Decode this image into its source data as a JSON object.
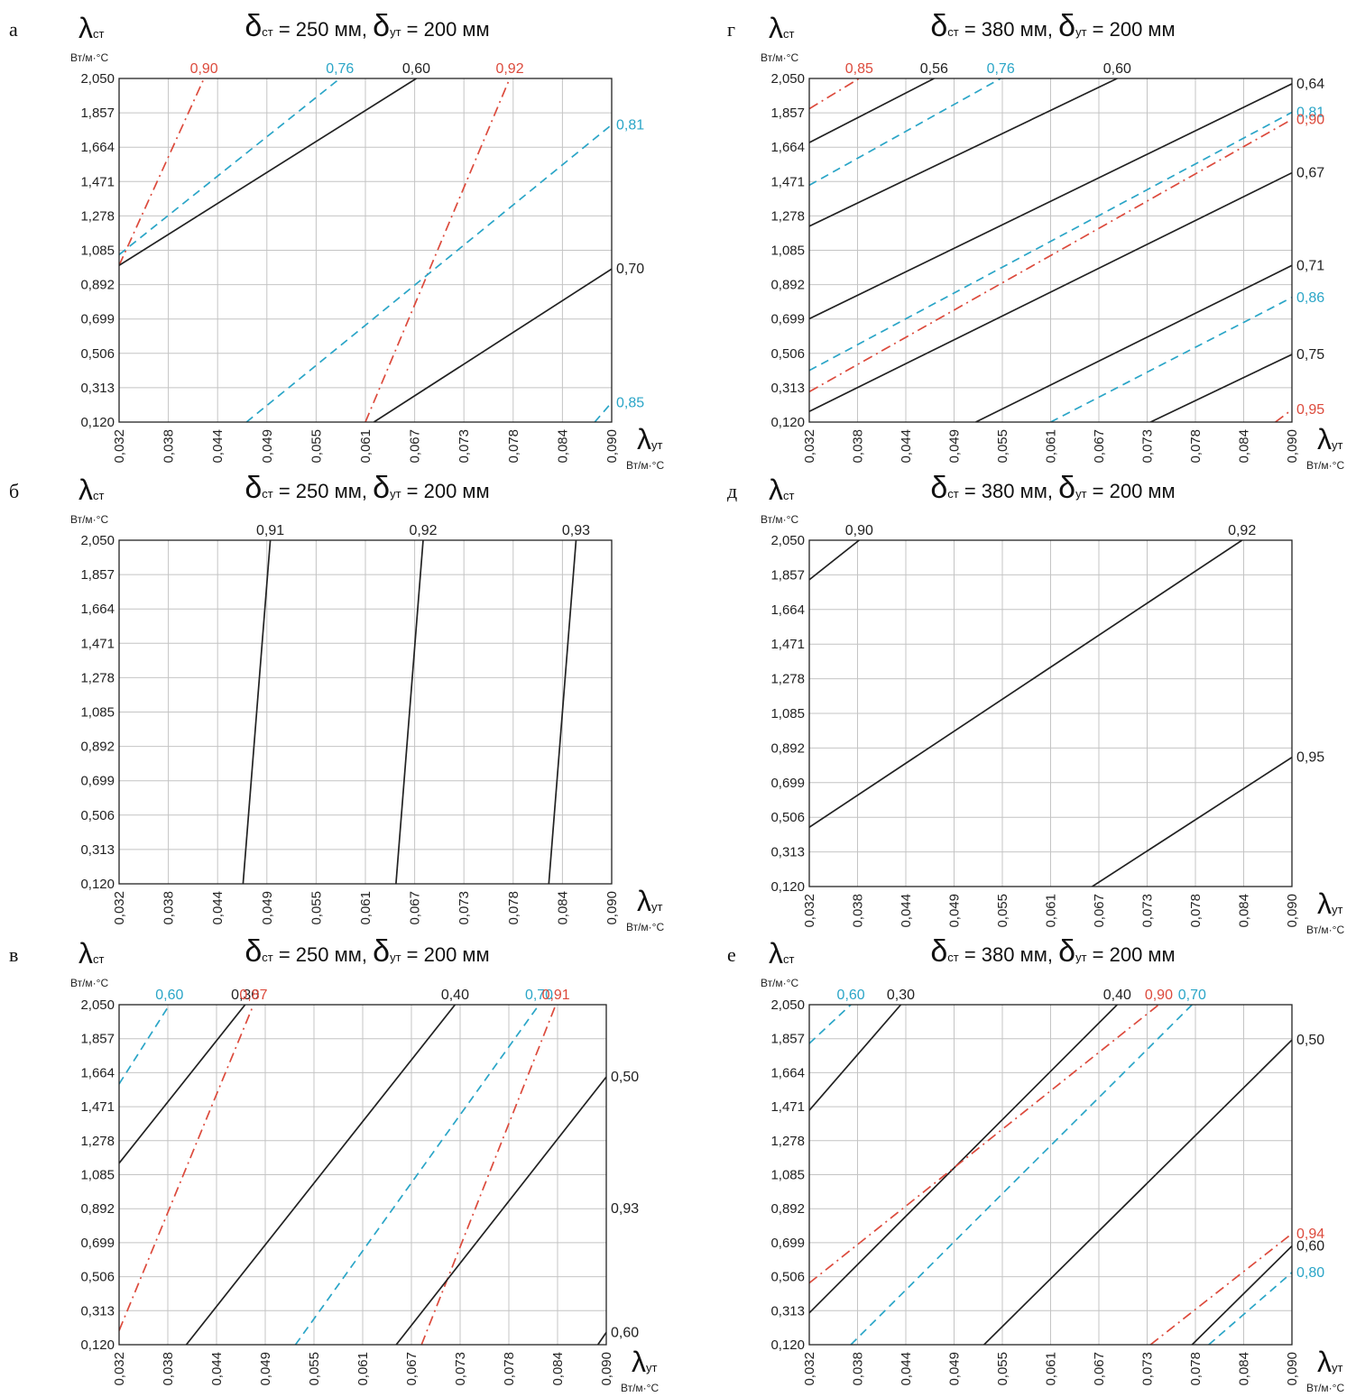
{
  "colors": {
    "black": "#222222",
    "blue": "#2aa5c7",
    "red": "#dc4a3c",
    "grid": "#c4c4c4"
  },
  "chart_data": [
    {
      "type": "line",
      "panel_label": "а",
      "title": {
        "d_wall": "δ",
        "wall_sub": "ст",
        "wall_value": " = 250 мм,",
        "d_ins": "δ",
        "ins_sub": "ут",
        "ins_value": " = 200 мм"
      },
      "ylabel": {
        "symbol": "λ",
        "sub": "ст",
        "unit": "Вт/м·°С"
      },
      "xlabel": {
        "symbol": "λ",
        "sub": "ут",
        "unit": "Вт/м·°С"
      },
      "yticks": [
        "2,050",
        "1,857",
        "1,664",
        "1,471",
        "1,278",
        "1,085",
        "0,892",
        "0,699",
        "0,506",
        "0,313",
        "0,120"
      ],
      "xticks": [
        "0,032",
        "0,038",
        "0,044",
        "0,049",
        "0,055",
        "0,061",
        "0,067",
        "0,073",
        "0,078",
        "0,084",
        "0,090"
      ],
      "grid": true,
      "series": [
        {
          "label": "0,90",
          "color": "red",
          "style": "dashdot",
          "points": [
            [
              0.032,
              1.0
            ],
            [
              0.042,
              2.05
            ]
          ],
          "label_at": "end"
        },
        {
          "label": "0,76",
          "color": "blue",
          "style": "dashed",
          "points": [
            [
              0.032,
              1.06
            ],
            [
              0.058,
              2.05
            ]
          ],
          "label_at": "end"
        },
        {
          "label": "0,60",
          "color": "black",
          "style": "solid",
          "points": [
            [
              0.032,
              1.0
            ],
            [
              0.067,
              2.05
            ]
          ],
          "label_at": "end"
        },
        {
          "label": "0,92",
          "color": "red",
          "style": "dashdot",
          "points": [
            [
              0.061,
              0.12
            ],
            [
              0.078,
              2.05
            ]
          ],
          "label_at": "end"
        },
        {
          "label": "0,81",
          "color": "blue",
          "style": "dashed",
          "points": [
            [
              0.047,
              0.12
            ],
            [
              0.09,
              1.79
            ]
          ],
          "label_at": "end"
        },
        {
          "label": "0,70",
          "color": "black",
          "style": "solid",
          "points": [
            [
              0.062,
              0.12
            ],
            [
              0.09,
              0.98
            ]
          ],
          "label_at": "end"
        },
        {
          "label": "0,85",
          "color": "blue",
          "style": "dashed",
          "points": [
            [
              0.088,
              0.12
            ],
            [
              0.09,
              0.23
            ]
          ],
          "label_at": "end"
        }
      ]
    },
    {
      "type": "line",
      "panel_label": "б",
      "title": {
        "d_wall": "δ",
        "wall_sub": "ст",
        "wall_value": " = 250 мм,",
        "d_ins": "δ",
        "ins_sub": "ут",
        "ins_value": " = 200 мм"
      },
      "ylabel": {
        "symbol": "λ",
        "sub": "ст",
        "unit": "Вт/м·°С"
      },
      "xlabel": {
        "symbol": "λ",
        "sub": "ут",
        "unit": "Вт/м·°С"
      },
      "yticks": [
        "2,050",
        "1,857",
        "1,664",
        "1,471",
        "1,278",
        "1,085",
        "0,892",
        "0,699",
        "0,506",
        "0,313",
        "0,120"
      ],
      "xticks": [
        "0,032",
        "0,038",
        "0,044",
        "0,049",
        "0,055",
        "0,061",
        "0,067",
        "0,073",
        "0,078",
        "0,084",
        "0,090"
      ],
      "grid": true,
      "series": [
        {
          "label": "0,91",
          "color": "black",
          "style": "solid",
          "points": [
            [
              0.0466,
              0.12
            ],
            [
              0.0498,
              2.05
            ]
          ],
          "label_at": "end"
        },
        {
          "label": "0,92",
          "color": "black",
          "style": "solid",
          "points": [
            [
              0.0646,
              0.12
            ],
            [
              0.0678,
              2.05
            ]
          ],
          "label_at": "end"
        },
        {
          "label": "0,93",
          "color": "black",
          "style": "solid",
          "points": [
            [
              0.0826,
              0.12
            ],
            [
              0.0858,
              2.05
            ]
          ],
          "label_at": "end"
        }
      ]
    },
    {
      "type": "line",
      "panel_label": "в",
      "title": {
        "d_wall": "δ",
        "wall_sub": "ст",
        "wall_value": " = 250 мм,",
        "d_ins": "δ",
        "ins_sub": "ут",
        "ins_value": " = 200 мм"
      },
      "ylabel": {
        "symbol": "λ",
        "sub": "ст",
        "unit": "Вт/м·°С"
      },
      "xlabel": {
        "symbol": "λ",
        "sub": "ут",
        "unit": "Вт/м·°С"
      },
      "yticks": [
        "2,050",
        "1,857",
        "1,664",
        "1,471",
        "1,278",
        "1,085",
        "0,892",
        "0,699",
        "0,506",
        "0,313",
        "0,120"
      ],
      "xticks": [
        "0,032",
        "0,038",
        "0,044",
        "0,049",
        "0,055",
        "0,061",
        "0,067",
        "0,073",
        "0,078",
        "0,084",
        "0,090"
      ],
      "grid": true,
      "series": [
        {
          "label": "0,60",
          "color": "blue",
          "style": "dashed",
          "points": [
            [
              0.032,
              1.6
            ],
            [
              0.038,
              2.05
            ]
          ],
          "label_at": "end"
        },
        {
          "label": "0,30",
          "color": "black",
          "style": "solid",
          "points": [
            [
              0.032,
              1.15
            ],
            [
              0.047,
              2.05
            ]
          ],
          "label_at": "end"
        },
        {
          "label": "0,87",
          "color": "red",
          "style": "dashdot",
          "points": [
            [
              0.032,
              0.2
            ],
            [
              0.048,
              2.05
            ]
          ],
          "label_at": "end"
        },
        {
          "label": "0,40",
          "color": "black",
          "style": "solid",
          "points": [
            [
              0.04,
              0.12
            ],
            [
              0.072,
              2.05
            ]
          ],
          "label_at": "end"
        },
        {
          "label": "0,70",
          "color": "blue",
          "style": "dashed",
          "points": [
            [
              0.053,
              0.12
            ],
            [
              0.082,
              2.05
            ]
          ],
          "label_at": "end"
        },
        {
          "label": "0,91",
          "color": "red",
          "style": "dashdot",
          "points": [
            [
              0.068,
              0.12
            ],
            [
              0.084,
              2.05
            ]
          ],
          "label_at": "end"
        },
        {
          "label": "0,50",
          "color": "black",
          "style": "solid",
          "points": [
            [
              0.065,
              0.12
            ],
            [
              0.09,
              1.64
            ]
          ],
          "label_at": "end"
        },
        {
          "label": "0,60",
          "color": "black",
          "style": "solid",
          "points": [
            [
              0.089,
              0.12
            ],
            [
              0.09,
              0.19
            ]
          ],
          "label_at": "end"
        }
      ],
      "annotations": [
        {
          "text": "0,93",
          "x": 0.09,
          "y": 0.892
        }
      ]
    },
    {
      "type": "line",
      "panel_label": "г",
      "title": {
        "d_wall": "δ",
        "wall_sub": "ст",
        "wall_value": " = 380 мм,",
        "d_ins": "δ",
        "ins_sub": "ут",
        "ins_value": " = 200 мм"
      },
      "ylabel": {
        "symbol": "λ",
        "sub": "ст",
        "unit": "Вт/м·°С"
      },
      "xlabel": {
        "symbol": "λ",
        "sub": "ут",
        "unit": "Вт/м·°С"
      },
      "yticks": [
        "2,050",
        "1,857",
        "1,664",
        "1,471",
        "1,278",
        "1,085",
        "0,892",
        "0,699",
        "0,506",
        "0,313",
        "0,120"
      ],
      "xticks": [
        "0,032",
        "0,038",
        "0,044",
        "0,049",
        "0,055",
        "0,061",
        "0,067",
        "0,073",
        "0,078",
        "0,084",
        "0,090"
      ],
      "grid": true,
      "series": [
        {
          "label": "0,85",
          "color": "red",
          "style": "dashdot",
          "points": [
            [
              0.032,
              1.88
            ],
            [
              0.038,
              2.05
            ]
          ],
          "label_at": "end"
        },
        {
          "label": "0,56",
          "color": "black",
          "style": "solid",
          "points": [
            [
              0.032,
              1.69
            ],
            [
              0.047,
              2.05
            ]
          ],
          "label_at": "end"
        },
        {
          "label": "0,76",
          "color": "blue",
          "style": "dashed",
          "points": [
            [
              0.032,
              1.45
            ],
            [
              0.055,
              2.05
            ]
          ],
          "label_at": "end"
        },
        {
          "label": "0,60",
          "color": "black",
          "style": "solid",
          "points": [
            [
              0.032,
              1.22
            ],
            [
              0.069,
              2.05
            ]
          ],
          "label_at": "end"
        },
        {
          "label": "0,64",
          "color": "black",
          "style": "solid",
          "points": [
            [
              0.032,
              0.7
            ],
            [
              0.09,
              2.02
            ]
          ],
          "label_at": "end"
        },
        {
          "label": "0,81",
          "color": "blue",
          "style": "dashed",
          "points": [
            [
              0.032,
              0.41
            ],
            [
              0.09,
              1.86
            ]
          ],
          "label_at": "end"
        },
        {
          "label": "0,90",
          "color": "red",
          "style": "dashdot",
          "points": [
            [
              0.032,
              0.29
            ],
            [
              0.09,
              1.82
            ]
          ],
          "label_at": "end"
        },
        {
          "label": "0,67",
          "color": "black",
          "style": "solid",
          "points": [
            [
              0.032,
              0.18
            ],
            [
              0.09,
              1.52
            ]
          ],
          "label_at": "end"
        },
        {
          "label": "0,71",
          "color": "black",
          "style": "solid",
          "points": [
            [
              0.052,
              0.12
            ],
            [
              0.09,
              1.0
            ]
          ],
          "label_at": "end"
        },
        {
          "label": "0,86",
          "color": "blue",
          "style": "dashed",
          "points": [
            [
              0.061,
              0.12
            ],
            [
              0.09,
              0.82
            ]
          ],
          "label_at": "end"
        },
        {
          "label": "0,75",
          "color": "black",
          "style": "solid",
          "points": [
            [
              0.073,
              0.12
            ],
            [
              0.09,
              0.5
            ]
          ],
          "label_at": "end"
        },
        {
          "label": "0,95",
          "color": "red",
          "style": "dashdot",
          "points": [
            [
              0.088,
              0.12
            ],
            [
              0.09,
              0.19
            ]
          ],
          "label_at": "end"
        }
      ]
    },
    {
      "type": "line",
      "panel_label": "д",
      "title": {
        "d_wall": "δ",
        "wall_sub": "ст",
        "wall_value": " = 380 мм,",
        "d_ins": "δ",
        "ins_sub": "ут",
        "ins_value": " = 200 мм"
      },
      "ylabel": {
        "symbol": "λ",
        "sub": "ст",
        "unit": "Вт/м·°С"
      },
      "xlabel": {
        "symbol": "λ",
        "sub": "ут",
        "unit": "Вт/м·°С"
      },
      "yticks": [
        "2,050",
        "1,857",
        "1,664",
        "1,471",
        "1,278",
        "1,085",
        "0,892",
        "0,699",
        "0,506",
        "0,313",
        "0,120"
      ],
      "xticks": [
        "0,032",
        "0,038",
        "0,044",
        "0,049",
        "0,055",
        "0,061",
        "0,067",
        "0,073",
        "0,078",
        "0,084",
        "0,090"
      ],
      "grid": true,
      "series": [
        {
          "label": "0,90",
          "color": "black",
          "style": "solid",
          "points": [
            [
              0.032,
              1.83
            ],
            [
              0.038,
              2.05
            ]
          ],
          "label_at": "end"
        },
        {
          "label": "0,92",
          "color": "black",
          "style": "solid",
          "points": [
            [
              0.032,
              0.45
            ],
            [
              0.084,
              2.05
            ]
          ],
          "label_at": "end"
        },
        {
          "label": "0,95",
          "color": "black",
          "style": "solid",
          "points": [
            [
              0.066,
              0.12
            ],
            [
              0.09,
              0.84
            ]
          ],
          "label_at": "end"
        }
      ]
    },
    {
      "type": "line",
      "panel_label": "е",
      "title": {
        "d_wall": "δ",
        "wall_sub": "ст",
        "wall_value": " = 380 мм,",
        "d_ins": "δ",
        "ins_sub": "ут",
        "ins_value": " = 200 мм"
      },
      "ylabel": {
        "symbol": "λ",
        "sub": "ст",
        "unit": "Вт/м·°С"
      },
      "xlabel": {
        "symbol": "λ",
        "sub": "ут",
        "unit": "Вт/м·°С"
      },
      "yticks": [
        "2,050",
        "1,857",
        "1,664",
        "1,471",
        "1,278",
        "1,085",
        "0,892",
        "0,699",
        "0,506",
        "0,313",
        "0,120"
      ],
      "xticks": [
        "0,032",
        "0,038",
        "0,044",
        "0,049",
        "0,055",
        "0,061",
        "0,067",
        "0,073",
        "0,078",
        "0,084",
        "0,090"
      ],
      "grid": true,
      "series": [
        {
          "label": "0,60",
          "color": "blue",
          "style": "dashed",
          "points": [
            [
              0.032,
              1.83
            ],
            [
              0.037,
              2.05
            ]
          ],
          "label_at": "end"
        },
        {
          "label": "0,30",
          "color": "black",
          "style": "solid",
          "points": [
            [
              0.032,
              1.45
            ],
            [
              0.043,
              2.05
            ]
          ],
          "label_at": "end"
        },
        {
          "label": "0,40",
          "color": "black",
          "style": "solid",
          "points": [
            [
              0.032,
              0.3
            ],
            [
              0.069,
              2.05
            ]
          ],
          "label_at": "end"
        },
        {
          "label": "0,90",
          "color": "red",
          "style": "dashdot",
          "points": [
            [
              0.032,
              0.47
            ],
            [
              0.074,
              2.05
            ]
          ],
          "label_at": "end"
        },
        {
          "label": "0,70",
          "color": "blue",
          "style": "dashed",
          "points": [
            [
              0.037,
              0.12
            ],
            [
              0.078,
              2.05
            ]
          ],
          "label_at": "end"
        },
        {
          "label": "0,50",
          "color": "black",
          "style": "solid",
          "points": [
            [
              0.053,
              0.12
            ],
            [
              0.09,
              1.85
            ]
          ],
          "label_at": "end"
        },
        {
          "label": "0,94",
          "color": "red",
          "style": "dashdot",
          "points": [
            [
              0.073,
              0.12
            ],
            [
              0.09,
              0.75
            ]
          ],
          "label_at": "end"
        },
        {
          "label": "0,60",
          "color": "black",
          "style": "solid",
          "points": [
            [
              0.078,
              0.12
            ],
            [
              0.09,
              0.68
            ]
          ],
          "label_at": "end"
        },
        {
          "label": "0,80",
          "color": "blue",
          "style": "dashed",
          "points": [
            [
              0.08,
              0.12
            ],
            [
              0.09,
              0.53
            ]
          ],
          "label_at": "end"
        }
      ]
    }
  ]
}
